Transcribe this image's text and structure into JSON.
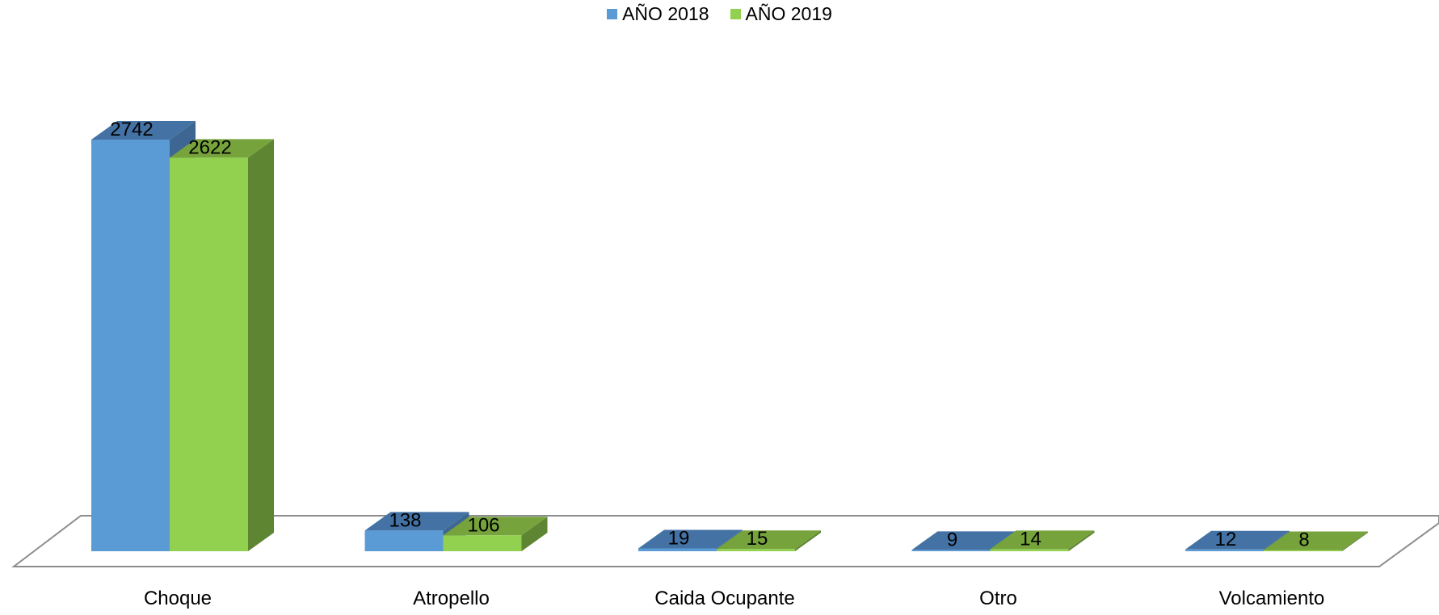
{
  "chart_data": {
    "type": "bar",
    "title": "",
    "xlabel": "",
    "ylabel": "",
    "categories": [
      "Choque",
      "Atropello",
      "Caida Ocupante",
      "Otro",
      "Volcamiento"
    ],
    "series": [
      {
        "name": "AÑO 2018",
        "values": [
          2742,
          138,
          19,
          9,
          12
        ],
        "color": "#5b9bd5",
        "top_color": "#4472a4",
        "side_color": "#3d6792"
      },
      {
        "name": "AÑO 2019",
        "values": [
          2622,
          106,
          15,
          14,
          8
        ],
        "color": "#92d050",
        "top_color": "#76a33c",
        "side_color": "#5e8532"
      }
    ],
    "ylim": [
      0,
      2742
    ],
    "grid": false,
    "legend_position": "top-center",
    "style": "3d-clustered-column"
  }
}
